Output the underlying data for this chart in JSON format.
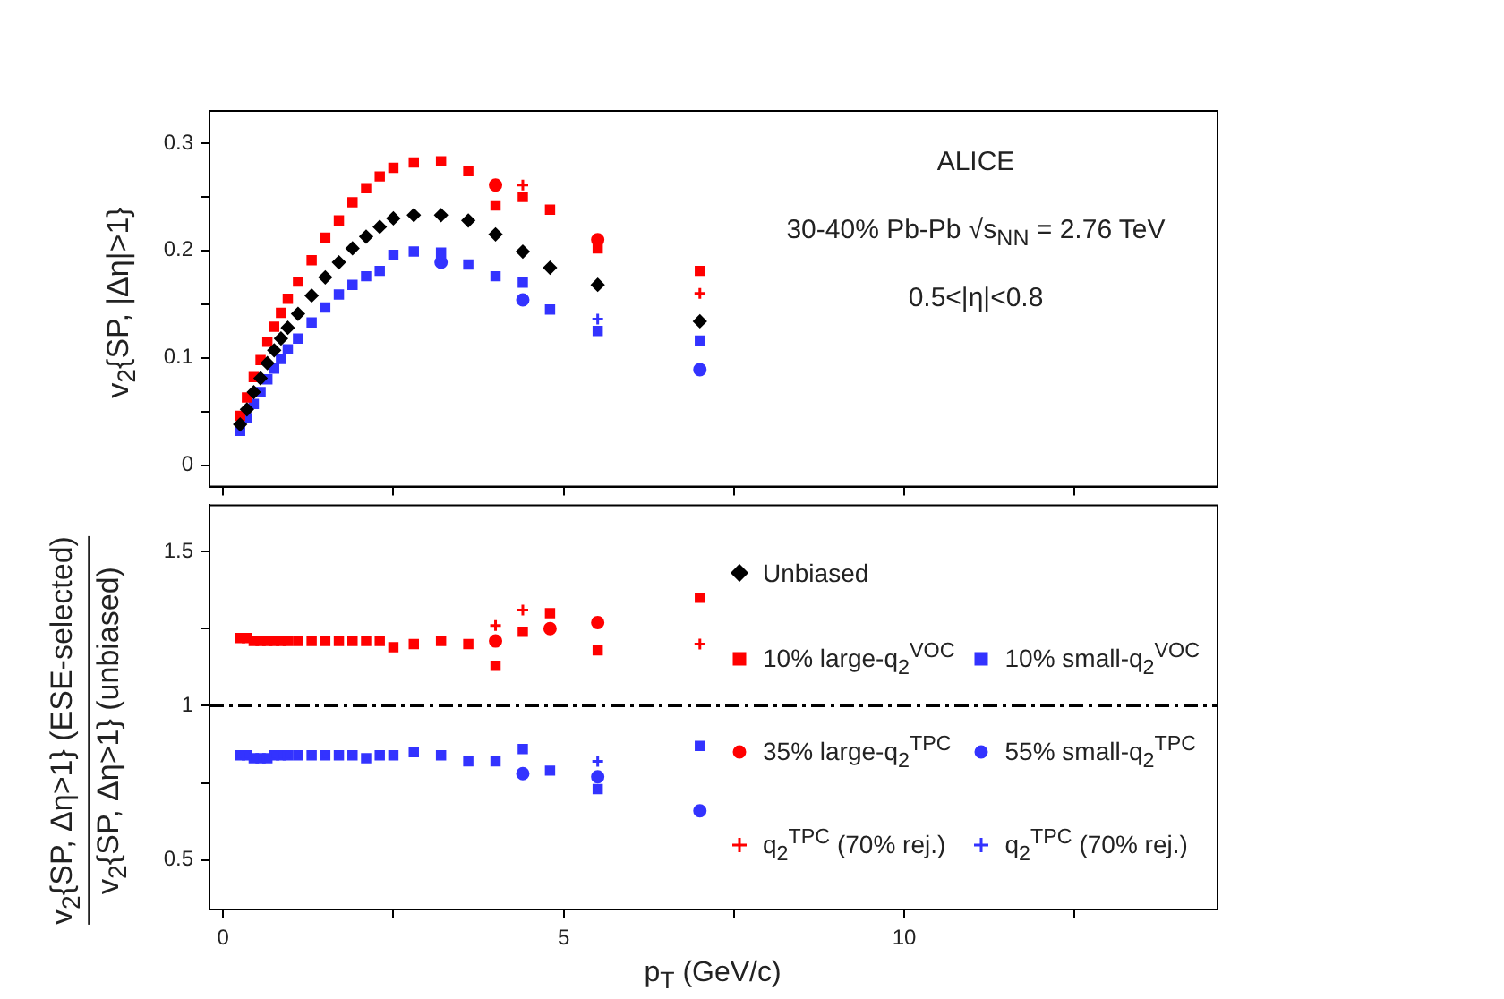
{
  "chart_data": [
    {
      "type": "scatter",
      "ylabel": "v$_{2}${SP, |Δη|>1}",
      "annotations": [
        "ALICE",
        "30-40% Pb-Pb √s$_{NN}$ = 2.76 TeV",
        "0.5<|η|<0.8"
      ],
      "x": [
        0.25,
        0.35,
        0.45,
        0.55,
        0.65,
        0.75,
        0.85,
        0.95,
        1.1,
        1.3,
        1.5,
        1.7,
        1.9,
        2.1,
        2.3,
        2.5,
        2.8,
        3.2,
        3.6,
        4.0,
        4.4,
        4.8,
        5.5,
        7.0
      ],
      "xlim": [
        -0.2,
        14.6
      ],
      "xticks": [
        0,
        {
          "value": 2.5,
          "label": null
        },
        5,
        {
          "value": 7.5,
          "label": null
        },
        10,
        {
          "value": 12.5,
          "label": null
        }
      ],
      "ylim": [
        -0.02,
        0.33
      ],
      "yticks": [
        0,
        {
          "value": 0.05,
          "label": null
        },
        0.1,
        {
          "value": 0.15,
          "label": null
        },
        0.2,
        {
          "value": 0.25,
          "label": null
        },
        0.3
      ],
      "tick_labels": "y",
      "legend": "bottom right",
      "series": [
        {
          "name": "Unbiased",
          "color": "#000000",
          "marker": "diamond",
          "values": [
            0.038,
            0.052,
            0.068,
            0.081,
            0.095,
            0.107,
            0.118,
            0.128,
            0.141,
            0.158,
            0.175,
            0.189,
            0.202,
            0.213,
            0.222,
            0.23,
            0.233,
            0.233,
            0.228,
            0.215,
            0.199,
            0.184,
            0.168,
            0.134
          ]
        },
        {
          "name": "10% large-q$_{2}$$^{VOC}$",
          "color": "#ff0000",
          "marker": "square",
          "values": [
            0.046,
            0.063,
            0.082,
            0.098,
            0.115,
            0.129,
            0.142,
            0.155,
            0.171,
            0.191,
            0.212,
            0.228,
            0.245,
            0.258,
            0.269,
            0.277,
            0.282,
            0.283,
            0.274,
            0.242,
            0.25,
            0.238,
            0.202,
            0.181
          ]
        },
        {
          "name": "35% large-q$_{2}$$^{TPC}$",
          "color": "#ff0000",
          "marker": "circle",
          "values": [
            null,
            null,
            null,
            null,
            null,
            null,
            null,
            null,
            null,
            null,
            null,
            null,
            null,
            null,
            null,
            null,
            null,
            null,
            null,
            0.261,
            null,
            null,
            0.21,
            null
          ]
        },
        {
          "name": "q$_{2}$$^{TPC}$ (70% rej.)",
          "color": "#ff0000",
          "marker": "cross",
          "values": [
            null,
            null,
            null,
            null,
            null,
            null,
            null,
            null,
            null,
            null,
            null,
            null,
            null,
            null,
            null,
            null,
            null,
            null,
            null,
            null,
            0.261,
            null,
            null,
            0.16
          ]
        },
        {
          "name": "10% small-q$_{2}$$^{VOC}$",
          "color": "#3333ff",
          "marker": "square",
          "values": [
            0.032,
            0.044,
            0.057,
            0.068,
            0.08,
            0.09,
            0.099,
            0.108,
            0.118,
            0.133,
            0.147,
            0.159,
            0.168,
            0.176,
            0.181,
            0.196,
            0.199,
            0.198,
            0.187,
            0.176,
            0.17,
            0.145,
            0.125,
            0.116
          ]
        },
        {
          "name": "55% small-q$_{2}$$^{TPC}$",
          "color": "#3333ff",
          "marker": "circle",
          "values": [
            null,
            null,
            null,
            null,
            null,
            null,
            null,
            null,
            null,
            null,
            null,
            null,
            null,
            null,
            null,
            null,
            null,
            0.189,
            null,
            null,
            0.154,
            null,
            null,
            0.089
          ]
        },
        {
          "name": "q$_{2}$$^{TPC}$ (70% rej.)",
          "color": "#3333ff",
          "marker": "cross",
          "values": [
            null,
            null,
            null,
            null,
            null,
            null,
            null,
            null,
            null,
            null,
            null,
            null,
            null,
            null,
            null,
            null,
            null,
            null,
            null,
            null,
            null,
            null,
            0.136,
            null
          ]
        }
      ]
    },
    {
      "type": "scatter",
      "xlabel": "p$_{T}$ (GeV/c)",
      "ylabel": "v$_{2}${SP, Δη>1} (ESE-selected)\nv$_{2}${SP, Δη>1} (unbiased)",
      "x": [
        0.25,
        0.35,
        0.45,
        0.55,
        0.65,
        0.75,
        0.85,
        0.95,
        1.1,
        1.3,
        1.5,
        1.7,
        1.9,
        2.1,
        2.3,
        2.5,
        2.8,
        3.2,
        3.6,
        4.0,
        4.4,
        4.8,
        5.5,
        7.0
      ],
      "xlim": [
        -0.2,
        14.6
      ],
      "xticks": [
        0,
        {
          "value": 2.5,
          "label": null
        },
        5,
        {
          "value": 7.5,
          "label": null
        },
        10,
        {
          "value": 12.5,
          "label": null
        }
      ],
      "ylim": [
        0.34,
        1.65
      ],
      "yticks": [
        0.5,
        {
          "value": 0.75,
          "label": null
        },
        1,
        {
          "value": 1.25,
          "label": null
        },
        1.5
      ],
      "ref_lines": [
        {
          "axis": "y",
          "value": 1,
          "color": "#000000",
          "line_style": "dashed"
        }
      ],
      "series": [
        {
          "color": "#ff0000",
          "marker": "square",
          "values": [
            1.22,
            1.22,
            1.21,
            1.21,
            1.21,
            1.21,
            1.21,
            1.21,
            1.21,
            1.21,
            1.21,
            1.21,
            1.21,
            1.21,
            1.21,
            1.19,
            1.2,
            1.21,
            1.2,
            1.13,
            1.24,
            1.3,
            1.18,
            1.35
          ]
        },
        {
          "color": "#ff0000",
          "marker": "circle",
          "values": [
            null,
            null,
            null,
            null,
            null,
            null,
            null,
            null,
            null,
            null,
            null,
            null,
            null,
            null,
            null,
            null,
            null,
            null,
            null,
            1.21,
            null,
            1.25,
            1.27,
            null
          ]
        },
        {
          "color": "#ff0000",
          "marker": "cross",
          "values": [
            null,
            null,
            null,
            null,
            null,
            null,
            null,
            null,
            null,
            null,
            null,
            null,
            null,
            null,
            null,
            null,
            null,
            null,
            null,
            1.26,
            1.31,
            null,
            null,
            1.2
          ]
        },
        {
          "color": "#3333ff",
          "marker": "square",
          "values": [
            0.84,
            0.84,
            0.83,
            0.83,
            0.83,
            0.84,
            0.84,
            0.84,
            0.84,
            0.84,
            0.84,
            0.84,
            0.84,
            0.83,
            0.84,
            0.84,
            0.85,
            0.84,
            0.82,
            0.82,
            0.86,
            0.79,
            0.73,
            0.87
          ]
        },
        {
          "color": "#3333ff",
          "marker": "circle",
          "values": [
            null,
            null,
            null,
            null,
            null,
            null,
            null,
            null,
            null,
            null,
            null,
            null,
            null,
            null,
            null,
            null,
            null,
            null,
            null,
            null,
            0.78,
            null,
            0.77,
            0.66
          ]
        },
        {
          "color": "#3333ff",
          "marker": "cross",
          "values": [
            null,
            null,
            null,
            null,
            null,
            null,
            null,
            null,
            null,
            null,
            null,
            null,
            null,
            null,
            null,
            null,
            null,
            null,
            null,
            null,
            null,
            null,
            0.82,
            null
          ]
        }
      ]
    }
  ]
}
